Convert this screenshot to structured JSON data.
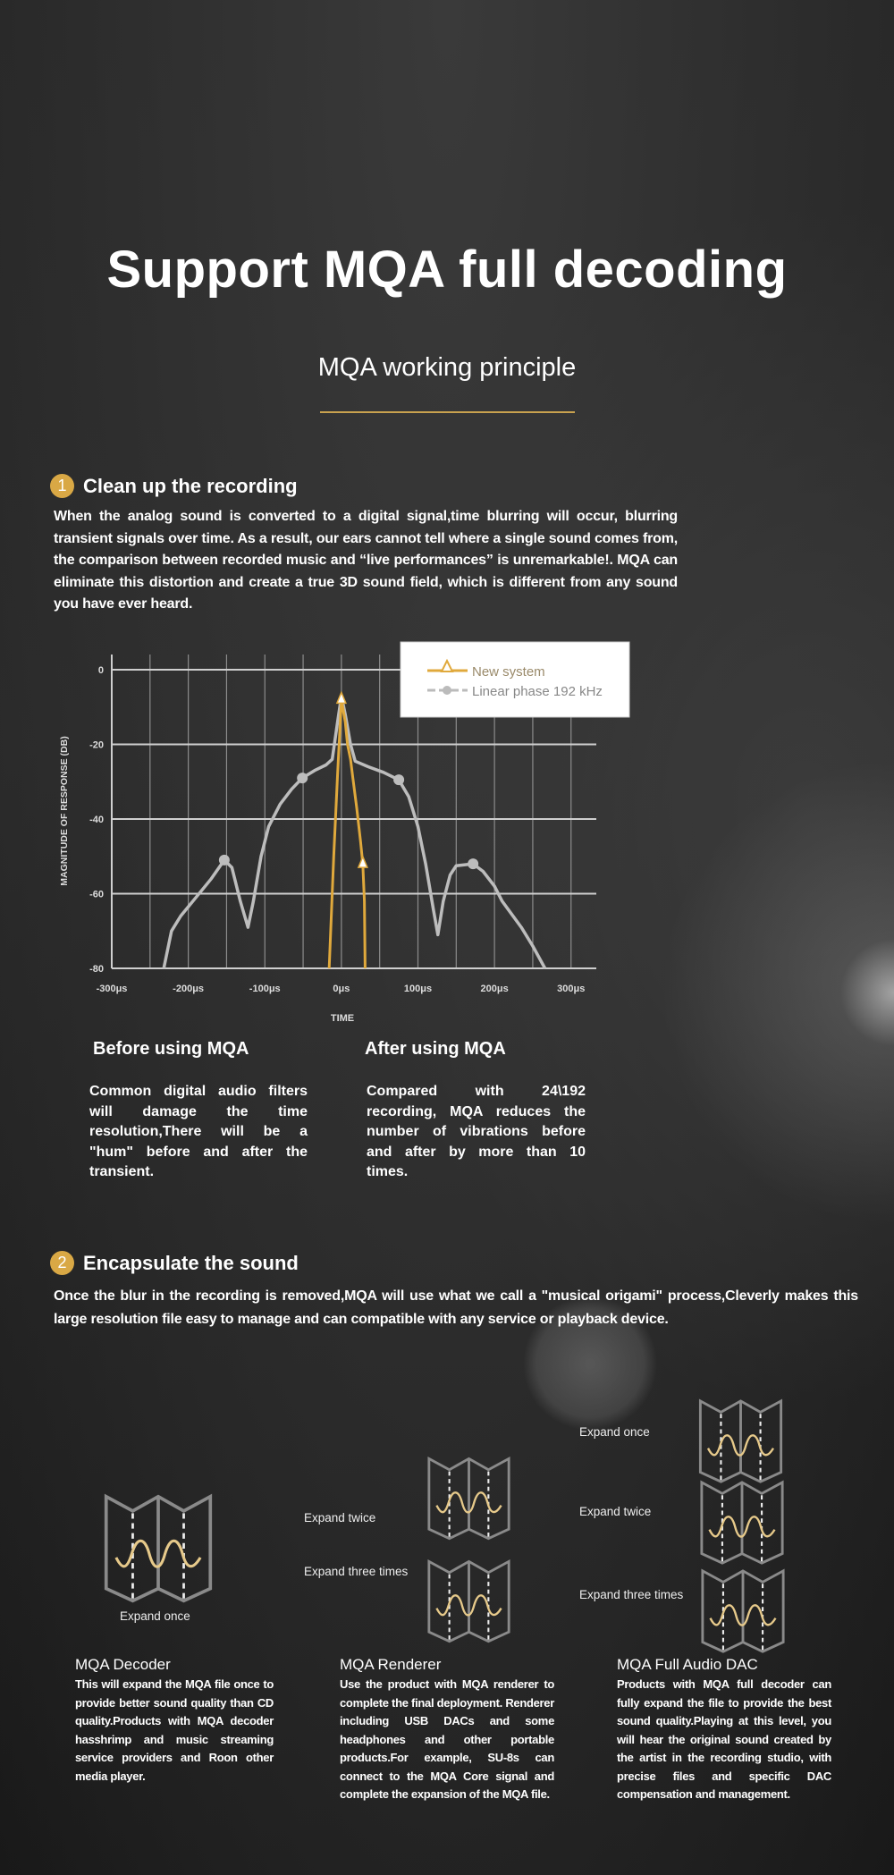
{
  "header": {
    "title": "Support MQA full decoding",
    "subtitle": "MQA working principle",
    "accent_color": "#c9a24f"
  },
  "section1": {
    "number": "1",
    "heading": "Clean up the recording",
    "paragraph": "When the analog sound is converted to a digital signal,time blurring will occur, blurring transient signals over time. As a result, our ears cannot tell where a single sound comes from, the comparison between recorded music and “live performances” is unremarkable!. MQA can eliminate this distortion and create a true 3D sound field, which is different from any sound you have ever heard."
  },
  "chart_data": {
    "type": "line",
    "title": "",
    "xlabel": "TIME",
    "ylabel": "MAGNITUDE OF RESPONSE (DB)",
    "xlim": [
      -300,
      333
    ],
    "ylim": [
      -80,
      0
    ],
    "x_ticks": [
      -300,
      -200,
      -100,
      0,
      100,
      200,
      300
    ],
    "x_tick_labels": [
      "-300μs",
      "-200μs",
      "-100μs",
      "0μs",
      "100μs",
      "200μs",
      "300μs"
    ],
    "y_ticks": [
      0,
      -20,
      -40,
      -60,
      -80
    ],
    "y_tick_labels": [
      "0",
      "-20",
      "-40",
      "-60",
      "-80"
    ],
    "grid": true,
    "legend_placement": "top-right",
    "series": [
      {
        "name": "New system",
        "color": "#e0a93c",
        "marker": "triangle",
        "points": [
          [
            -16,
            -80
          ],
          [
            -10,
            -50
          ],
          [
            -5,
            -28
          ],
          [
            0,
            -8
          ],
          [
            5,
            -14
          ],
          [
            8,
            -20
          ],
          [
            12,
            -24
          ],
          [
            15,
            -29
          ],
          [
            20,
            -37
          ],
          [
            25,
            -46
          ],
          [
            28,
            -52
          ],
          [
            30,
            -62
          ],
          [
            31,
            -80
          ]
        ],
        "marker_points": [
          [
            0,
            -8
          ],
          [
            28,
            -52
          ]
        ]
      },
      {
        "name": "Linear phase 192 kHz",
        "color": "#bdbdbd",
        "marker": "circle",
        "points": [
          [
            -232,
            -80
          ],
          [
            -222,
            -70
          ],
          [
            -210,
            -66
          ],
          [
            -190,
            -61
          ],
          [
            -170,
            -56
          ],
          [
            -153,
            -51
          ],
          [
            -143,
            -53
          ],
          [
            -132,
            -62
          ],
          [
            -122,
            -69
          ],
          [
            -115,
            -62
          ],
          [
            -105,
            -50
          ],
          [
            -95,
            -42
          ],
          [
            -80,
            -36
          ],
          [
            -65,
            -32
          ],
          [
            -51,
            -29
          ],
          [
            -35,
            -27
          ],
          [
            -20,
            -25.5
          ],
          [
            -12,
            -24
          ],
          [
            -5,
            -14
          ],
          [
            0,
            -7
          ],
          [
            5,
            -12
          ],
          [
            12,
            -20
          ],
          [
            18,
            -24.5
          ],
          [
            35,
            -26
          ],
          [
            55,
            -27.5
          ],
          [
            75,
            -29.5
          ],
          [
            88,
            -34
          ],
          [
            100,
            -42
          ],
          [
            110,
            -52
          ],
          [
            120,
            -64
          ],
          [
            126,
            -71
          ],
          [
            133,
            -62
          ],
          [
            142,
            -55
          ],
          [
            150,
            -52.5
          ],
          [
            172,
            -52
          ],
          [
            185,
            -54
          ],
          [
            200,
            -58
          ],
          [
            210,
            -62
          ],
          [
            235,
            -69
          ],
          [
            250,
            -74
          ],
          [
            266,
            -80
          ]
        ],
        "marker_points": [
          [
            -153,
            -51
          ],
          [
            -51,
            -29
          ],
          [
            75,
            -29.5
          ],
          [
            172,
            -52
          ]
        ]
      }
    ]
  },
  "comparison": {
    "before": {
      "heading": "Before using MQA",
      "text": "Common digital audio filters will damage the time resolution,There will be a \"hum\" before and after the transient."
    },
    "after": {
      "heading": "After using MQA",
      "text": "Compared with 24\\192 recording, MQA reduces the number of vibrations before and after by more than 10 times."
    }
  },
  "section2": {
    "number": "2",
    "heading": "Encapsulate the sound",
    "paragraph": "Once the blur in the recording is removed,MQA will use what we call a \"musical origami\" process,Cleverly makes this large resolution file easy to manage and can compatible with any service or playback device."
  },
  "origami": {
    "decoder": [
      "Expand once"
    ],
    "renderer": [
      "Expand twice",
      "Expand three times"
    ],
    "dac": [
      "Expand once",
      "Expand twice",
      "Expand three times"
    ]
  },
  "products": [
    {
      "title": "MQA Decoder",
      "text": "This will expand the MQA file once to provide better sound quality than CD quality.Products with MQA decoder hasshrimp and music streaming service providers and Roon other media player."
    },
    {
      "title": "MQA Renderer",
      "text": "Use the product with MQA renderer to complete the final deployment. Renderer including USB DACs and some headphones and other portable products.For example, SU-8s can connect to the MQA Core signal and complete the expansion of the MQA file."
    },
    {
      "title": "MQA Full Audio DAC",
      "text": "Products with MQA full decoder can fully expand the file to provide the best sound quality.Playing at this level, you will hear the original sound created by the artist in the recording studio, with precise files and specific DAC compensation and management."
    }
  ]
}
